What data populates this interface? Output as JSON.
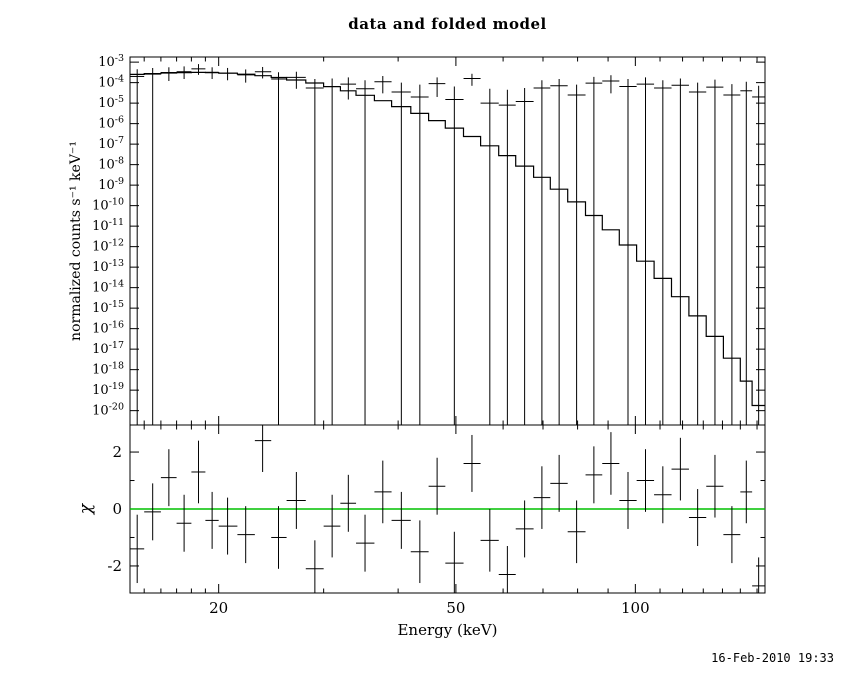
{
  "footer": {
    "timestamp": "16-Feb-2010 19:33"
  },
  "chart_data": {
    "type": "line",
    "title": "data and folded model",
    "xlabel": "Energy (keV)",
    "xscale": "log",
    "xlim": [
      14.2,
      165
    ],
    "xticks_major": [
      20,
      50,
      100
    ],
    "xtick_labels": [
      "20",
      "50",
      "100"
    ],
    "xticks_minor": [
      15,
      16,
      17,
      18,
      19,
      30,
      40,
      60,
      70,
      80,
      90,
      110,
      120,
      130,
      140,
      150,
      160
    ],
    "grid": false,
    "legend": "none",
    "colors": {
      "data": "#000000",
      "model": "#000000",
      "frame": "#000000",
      "zero_line": "#00c000",
      "background": "#ffffff"
    },
    "panels": [
      {
        "name": "spectrum",
        "ylabel": "normalized counts s⁻¹ keV⁻¹",
        "yscale": "log",
        "ylim_log10": [
          -20.7,
          -2.75
        ],
        "ytick_exponents": [
          -3,
          -4,
          -5,
          -6,
          -7,
          -8,
          -9,
          -10,
          -11,
          -12,
          -13,
          -14,
          -15,
          -16,
          -17,
          -18,
          -19,
          -20
        ],
        "model_step": {
          "bin_edges_keV": [
            14.2,
            15,
            16,
            17,
            18,
            19,
            20,
            21.5,
            23,
            24.5,
            26,
            28,
            30,
            32,
            34,
            36.5,
            39,
            42,
            45,
            48,
            51.5,
            55,
            59,
            63,
            67.5,
            72,
            77,
            82.5,
            88,
            94,
            100.5,
            107.5,
            115,
            123,
            131.5,
            140.5,
            150,
            157,
            165
          ],
          "log10_flux": [
            -3.6,
            -3.56,
            -3.53,
            -3.51,
            -3.5,
            -3.51,
            -3.54,
            -3.59,
            -3.66,
            -3.75,
            -3.87,
            -4.02,
            -4.2,
            -4.4,
            -4.62,
            -4.88,
            -5.17,
            -5.5,
            -5.85,
            -6.22,
            -6.63,
            -7.08,
            -7.56,
            -8.07,
            -8.62,
            -9.2,
            -9.82,
            -10.48,
            -11.18,
            -11.92,
            -12.71,
            -13.55,
            -14.44,
            -15.38,
            -16.38,
            -17.44,
            -18.56,
            -19.75
          ]
        },
        "data_points_format": [
          "x_keV",
          "x_lo",
          "x_hi",
          "y",
          "y_lo_or_null_if_below_axis",
          "y_hi"
        ],
        "data_points": [
          [
            14.6,
            14.2,
            15.0,
            0.0002,
            null,
            0.00045
          ],
          [
            15.5,
            15.0,
            16.0,
            0.00026,
            null,
            0.00052
          ],
          [
            16.5,
            16.0,
            17.0,
            0.00031,
            0.00012,
            0.00056
          ],
          [
            17.5,
            17.0,
            18.0,
            0.00034,
            0.00015,
            0.00062
          ],
          [
            18.5,
            18.0,
            19.0,
            0.00047,
            0.00024,
            0.0008
          ],
          [
            19.5,
            19.0,
            20.0,
            0.00032,
            0.00015,
            0.00056
          ],
          [
            20.7,
            20.0,
            21.5,
            0.00029,
            0.00013,
            0.00052
          ],
          [
            22.2,
            21.5,
            23.0,
            0.00024,
            0.0001,
            0.00044
          ],
          [
            23.7,
            23.0,
            24.5,
            0.00034,
            0.00016,
            0.00058
          ],
          [
            25.2,
            24.5,
            26.0,
            0.00015,
            null,
            0.00032
          ],
          [
            27.0,
            26.0,
            28.0,
            0.00018,
            5e-05,
            0.00034
          ],
          [
            29.0,
            28.0,
            30.0,
            5.5e-05,
            null,
            0.00015
          ],
          [
            31.0,
            30.0,
            32.0,
            6.5e-05,
            null,
            0.00016
          ],
          [
            33.0,
            32.0,
            34.0,
            8.5e-05,
            1.5e-05,
            0.00018
          ],
          [
            35.2,
            34.0,
            36.5,
            5e-05,
            null,
            0.00013
          ],
          [
            37.7,
            36.5,
            39.0,
            0.00011,
            3e-05,
            0.00021
          ],
          [
            40.5,
            39.0,
            42.0,
            3.5e-05,
            null,
            0.0001
          ],
          [
            43.5,
            42.0,
            45.0,
            2e-05,
            null,
            8e-05
          ],
          [
            46.5,
            45.0,
            48.0,
            9e-05,
            2e-05,
            0.00018
          ],
          [
            49.7,
            48.0,
            51.5,
            1.5e-05,
            null,
            6.5e-05
          ],
          [
            53.2,
            51.5,
            55.0,
            0.00016,
            7e-05,
            0.00027
          ],
          [
            57.0,
            55.0,
            59.0,
            1e-05,
            null,
            5e-05
          ],
          [
            61.0,
            59.0,
            63.0,
            8e-06,
            null,
            4.5e-05
          ],
          [
            65.2,
            63.0,
            67.5,
            1.2e-05,
            null,
            5.5e-05
          ],
          [
            69.7,
            67.5,
            72.0,
            5.5e-05,
            null,
            0.00013
          ],
          [
            74.5,
            72.0,
            77.0,
            7e-05,
            null,
            0.00015
          ],
          [
            79.7,
            77.0,
            82.5,
            2.5e-05,
            null,
            8e-05
          ],
          [
            85.2,
            82.5,
            88.0,
            9.5e-05,
            null,
            0.00019
          ],
          [
            91.0,
            88.0,
            94.0,
            0.00012,
            3e-05,
            0.00023
          ],
          [
            97.2,
            94.0,
            100.5,
            6.5e-05,
            null,
            0.00015
          ],
          [
            104.0,
            100.5,
            107.5,
            8.5e-05,
            null,
            0.00018
          ],
          [
            111.2,
            107.5,
            115.0,
            5.5e-05,
            null,
            0.00013
          ],
          [
            119.0,
            115.0,
            123.0,
            7.5e-05,
            null,
            0.00016
          ],
          [
            127.2,
            123.0,
            131.5,
            3.5e-05,
            null,
            0.0001
          ],
          [
            136.0,
            131.5,
            140.5,
            6e-05,
            null,
            0.00014
          ],
          [
            145.2,
            140.5,
            150.0,
            2.5e-05,
            null,
            8.5e-05
          ],
          [
            153.5,
            150.0,
            157.0,
            4e-05,
            null,
            0.00011
          ],
          [
            161.0,
            157.0,
            165.0,
            2e-05,
            null,
            7e-05
          ]
        ]
      },
      {
        "name": "residuals",
        "ylabel": "χ",
        "yscale": "linear",
        "ylim": [
          -2.95,
          2.95
        ],
        "yticks_major": [
          -2,
          0,
          2
        ],
        "ytick_labels": [
          "-2",
          "0",
          "2"
        ],
        "yticks_minor": [
          -1,
          1
        ],
        "zero_line_y": 0,
        "data_points_format": [
          "x_keV",
          "x_lo",
          "x_hi",
          "chi",
          "chi_err"
        ],
        "data_points": [
          [
            14.6,
            14.2,
            15.0,
            -1.4,
            1.2
          ],
          [
            15.5,
            15.0,
            16.0,
            -0.1,
            1.0
          ],
          [
            16.5,
            16.0,
            17.0,
            1.1,
            1.0
          ],
          [
            17.5,
            17.0,
            18.0,
            -0.5,
            1.0
          ],
          [
            18.5,
            18.0,
            19.0,
            1.3,
            1.1
          ],
          [
            19.5,
            19.0,
            20.0,
            -0.4,
            1.0
          ],
          [
            20.7,
            20.0,
            21.5,
            -0.6,
            1.0
          ],
          [
            22.2,
            21.5,
            23.0,
            -0.9,
            1.0
          ],
          [
            23.7,
            23.0,
            24.5,
            2.4,
            1.1
          ],
          [
            25.2,
            24.5,
            26.0,
            -1.0,
            1.1
          ],
          [
            27.0,
            26.0,
            28.0,
            0.3,
            1.0
          ],
          [
            29.0,
            28.0,
            30.0,
            -2.1,
            1.0
          ],
          [
            31.0,
            30.0,
            32.0,
            -0.6,
            1.1
          ],
          [
            33.0,
            32.0,
            34.0,
            0.2,
            1.0
          ],
          [
            35.2,
            34.0,
            36.5,
            -1.2,
            1.0
          ],
          [
            37.7,
            36.5,
            39.0,
            0.6,
            1.1
          ],
          [
            40.5,
            39.0,
            42.0,
            -0.4,
            1.0
          ],
          [
            43.5,
            42.0,
            45.0,
            -1.5,
            1.1
          ],
          [
            46.5,
            45.0,
            48.0,
            0.8,
            1.0
          ],
          [
            49.7,
            48.0,
            51.5,
            -1.9,
            1.1
          ],
          [
            53.2,
            51.5,
            55.0,
            1.6,
            1.0
          ],
          [
            57.0,
            55.0,
            59.0,
            -1.1,
            1.1
          ],
          [
            61.0,
            59.0,
            63.0,
            -2.3,
            1.0
          ],
          [
            65.2,
            63.0,
            67.5,
            -0.7,
            1.0
          ],
          [
            69.7,
            67.5,
            72.0,
            0.4,
            1.1
          ],
          [
            74.5,
            72.0,
            77.0,
            0.9,
            1.0
          ],
          [
            79.7,
            77.0,
            82.5,
            -0.8,
            1.1
          ],
          [
            85.2,
            82.5,
            88.0,
            1.2,
            1.0
          ],
          [
            91.0,
            88.0,
            94.0,
            1.6,
            1.1
          ],
          [
            97.2,
            94.0,
            100.5,
            0.3,
            1.0
          ],
          [
            104.0,
            100.5,
            107.5,
            1.0,
            1.1
          ],
          [
            111.2,
            107.5,
            115.0,
            0.5,
            1.0
          ],
          [
            119.0,
            115.0,
            123.0,
            1.4,
            1.1
          ],
          [
            127.2,
            123.0,
            131.5,
            -0.3,
            1.0
          ],
          [
            136.0,
            131.5,
            140.5,
            0.8,
            1.1
          ],
          [
            145.2,
            140.5,
            150.0,
            -0.9,
            1.0
          ],
          [
            153.5,
            150.0,
            157.0,
            0.6,
            1.1
          ],
          [
            161.0,
            157.0,
            165.0,
            -2.7,
            1.0
          ]
        ]
      }
    ]
  }
}
